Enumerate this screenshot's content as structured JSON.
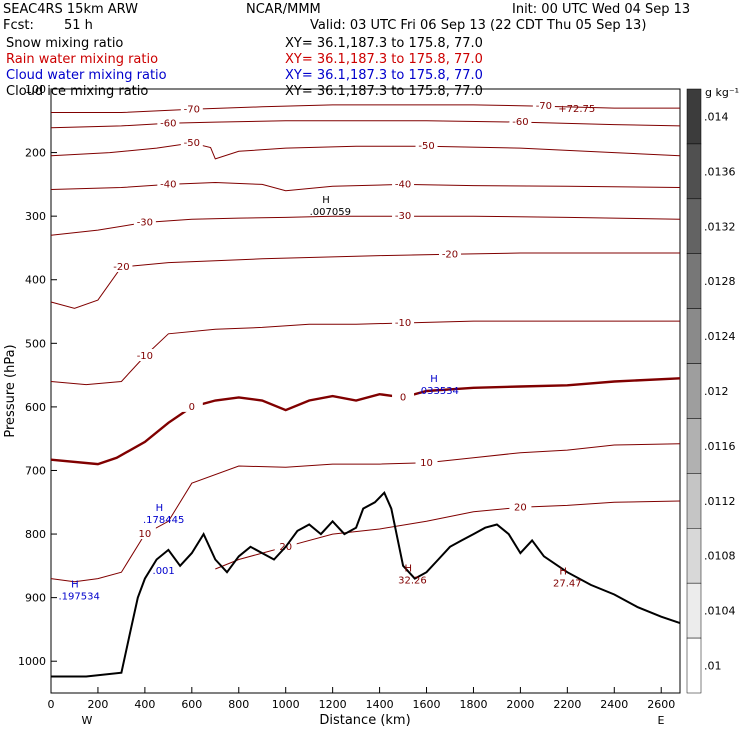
{
  "header": {
    "model": "SEAC4RS 15km ARW",
    "center": "NCAR/MMM",
    "init": "Init: 00 UTC Wed 04 Sep 13",
    "fcst_label": "Fcst:",
    "fcst_value": "51 h",
    "valid": "Valid: 03 UTC Fri 06 Sep 13 (22 CDT Thu 05 Sep 13)"
  },
  "legend": [
    {
      "label": "Snow mixing ratio",
      "xy": "XY=  36.1,187.3 to 175.8, 77.0",
      "color": "#000000"
    },
    {
      "label": "Rain water mixing ratio",
      "xy": "XY=  36.1,187.3 to 175.8, 77.0",
      "color": "#cc0000"
    },
    {
      "label": "Cloud water mixing ratio",
      "xy": "XY=  36.1,187.3 to 175.8, 77.0",
      "color": "#0000cc"
    },
    {
      "label": "Cloud ice mixing ratio",
      "xy": "XY=  36.1,187.3 to 175.8, 77.0",
      "color": "#000000"
    }
  ],
  "colorbar": {
    "unit": "g kg⁻¹",
    "ticks": [
      ".014",
      ".0136",
      ".0132",
      ".0128",
      ".0124",
      ".012",
      ".0116",
      ".0112",
      ".0108",
      ".0104",
      ".01"
    ]
  },
  "chart_data": {
    "type": "contour",
    "xlabel": "Distance (km)",
    "ylabel": "Pressure (hPa)",
    "xlim": [
      0,
      2680
    ],
    "ylim": [
      1050,
      100
    ],
    "x_ticks": [
      0,
      200,
      400,
      600,
      800,
      1000,
      1200,
      1400,
      1600,
      1800,
      2000,
      2200,
      2400,
      2600
    ],
    "y_ticks": [
      100,
      200,
      300,
      400,
      500,
      600,
      700,
      800,
      900,
      1000
    ],
    "x_end_labels": [
      "W",
      "E"
    ],
    "temperature_isotherms": [
      {
        "level": "-70",
        "points": [
          [
            0,
            137
          ],
          [
            300,
            137
          ],
          [
            600,
            132
          ],
          [
            900,
            128
          ],
          [
            1200,
            125
          ],
          [
            1500,
            125
          ],
          [
            1800,
            125
          ],
          [
            2100,
            127
          ],
          [
            2400,
            130
          ],
          [
            2680,
            130
          ]
        ]
      },
      {
        "level": "-60",
        "points": [
          [
            0,
            161
          ],
          [
            300,
            158
          ],
          [
            500,
            154
          ],
          [
            700,
            152
          ],
          [
            1000,
            150
          ],
          [
            1300,
            150
          ],
          [
            1600,
            150
          ],
          [
            2000,
            152
          ],
          [
            2400,
            156
          ],
          [
            2680,
            158
          ]
        ]
      },
      {
        "level": "-50",
        "points": [
          [
            0,
            205
          ],
          [
            250,
            200
          ],
          [
            450,
            193
          ],
          [
            600,
            185
          ],
          [
            680,
            192
          ],
          [
            700,
            210
          ],
          [
            800,
            198
          ],
          [
            1000,
            193
          ],
          [
            1300,
            190
          ],
          [
            1600,
            190
          ],
          [
            2000,
            193
          ],
          [
            2400,
            200
          ],
          [
            2680,
            205
          ]
        ]
      },
      {
        "level": "-40",
        "points": [
          [
            0,
            258
          ],
          [
            300,
            255
          ],
          [
            500,
            250
          ],
          [
            700,
            247
          ],
          [
            900,
            250
          ],
          [
            1000,
            260
          ],
          [
            1200,
            253
          ],
          [
            1500,
            250
          ],
          [
            1800,
            252
          ],
          [
            2200,
            253
          ],
          [
            2680,
            255
          ]
        ]
      },
      {
        "level": "-30",
        "points": [
          [
            0,
            330
          ],
          [
            200,
            322
          ],
          [
            400,
            310
          ],
          [
            600,
            305
          ],
          [
            800,
            303
          ],
          [
            1000,
            302
          ],
          [
            1200,
            300
          ],
          [
            1500,
            300
          ],
          [
            1800,
            300
          ],
          [
            2200,
            302
          ],
          [
            2680,
            305
          ]
        ]
      },
      {
        "level": "-20",
        "points": [
          [
            0,
            435
          ],
          [
            100,
            445
          ],
          [
            200,
            432
          ],
          [
            300,
            380
          ],
          [
            500,
            373
          ],
          [
            700,
            370
          ],
          [
            900,
            367
          ],
          [
            1100,
            365
          ],
          [
            1400,
            362
          ],
          [
            1700,
            360
          ],
          [
            2000,
            358
          ],
          [
            2400,
            358
          ],
          [
            2680,
            358
          ]
        ]
      },
      {
        "level": "-10",
        "points": [
          [
            0,
            560
          ],
          [
            150,
            565
          ],
          [
            300,
            560
          ],
          [
            400,
            520
          ],
          [
            500,
            485
          ],
          [
            700,
            478
          ],
          [
            900,
            475
          ],
          [
            1100,
            470
          ],
          [
            1300,
            470
          ],
          [
            1500,
            468
          ],
          [
            1800,
            465
          ],
          [
            2200,
            465
          ],
          [
            2680,
            465
          ]
        ]
      },
      {
        "level": "0",
        "points": [
          [
            0,
            683
          ],
          [
            200,
            690
          ],
          [
            280,
            680
          ],
          [
            400,
            655
          ],
          [
            500,
            625
          ],
          [
            600,
            600
          ],
          [
            700,
            590
          ],
          [
            800,
            585
          ],
          [
            900,
            590
          ],
          [
            1000,
            605
          ],
          [
            1100,
            590
          ],
          [
            1200,
            583
          ],
          [
            1300,
            590
          ],
          [
            1400,
            580
          ],
          [
            1500,
            585
          ],
          [
            1600,
            575
          ],
          [
            1800,
            570
          ],
          [
            2000,
            568
          ],
          [
            2200,
            566
          ],
          [
            2400,
            560
          ],
          [
            2680,
            555
          ]
        ]
      },
      {
        "level": "10",
        "points": [
          [
            0,
            870
          ],
          [
            100,
            875
          ],
          [
            200,
            870
          ],
          [
            300,
            860
          ],
          [
            400,
            800
          ],
          [
            500,
            780
          ],
          [
            600,
            720
          ],
          [
            800,
            693
          ],
          [
            1000,
            695
          ],
          [
            1200,
            690
          ],
          [
            1400,
            690
          ],
          [
            1600,
            688
          ],
          [
            1800,
            680
          ],
          [
            2000,
            672
          ],
          [
            2200,
            668
          ],
          [
            2400,
            660
          ],
          [
            2680,
            658
          ]
        ]
      },
      {
        "level": "20",
        "points": [
          [
            700,
            855
          ],
          [
            800,
            840
          ],
          [
            900,
            830
          ],
          [
            1000,
            820
          ],
          [
            1200,
            800
          ],
          [
            1400,
            792
          ],
          [
            1600,
            780
          ],
          [
            1800,
            765
          ],
          [
            2000,
            758
          ],
          [
            2200,
            755
          ],
          [
            2400,
            750
          ],
          [
            2680,
            748
          ]
        ]
      }
    ],
    "freezing_level_bold": "0",
    "terrain_surface_hpa": [
      [
        0,
        1024
      ],
      [
        150,
        1024
      ],
      [
        300,
        1018
      ],
      [
        340,
        950
      ],
      [
        370,
        900
      ],
      [
        400,
        870
      ],
      [
        450,
        840
      ],
      [
        500,
        825
      ],
      [
        550,
        850
      ],
      [
        600,
        830
      ],
      [
        650,
        800
      ],
      [
        700,
        840
      ],
      [
        750,
        860
      ],
      [
        800,
        835
      ],
      [
        850,
        820
      ],
      [
        900,
        830
      ],
      [
        950,
        840
      ],
      [
        1000,
        820
      ],
      [
        1050,
        795
      ],
      [
        1100,
        785
      ],
      [
        1150,
        800
      ],
      [
        1200,
        780
      ],
      [
        1250,
        800
      ],
      [
        1300,
        790
      ],
      [
        1330,
        760
      ],
      [
        1380,
        750
      ],
      [
        1420,
        735
      ],
      [
        1450,
        760
      ],
      [
        1500,
        850
      ],
      [
        1550,
        870
      ],
      [
        1600,
        860
      ],
      [
        1650,
        840
      ],
      [
        1700,
        820
      ],
      [
        1750,
        810
      ],
      [
        1800,
        800
      ],
      [
        1850,
        790
      ],
      [
        1900,
        785
      ],
      [
        1950,
        800
      ],
      [
        2000,
        830
      ],
      [
        2050,
        810
      ],
      [
        2100,
        835
      ],
      [
        2200,
        860
      ],
      [
        2300,
        880
      ],
      [
        2400,
        895
      ],
      [
        2500,
        915
      ],
      [
        2600,
        930
      ],
      [
        2680,
        940
      ]
    ],
    "extrema_labels": [
      {
        "kind": "H",
        "value": ".007059",
        "x": 1190,
        "p": 290,
        "color": "#000000"
      },
      {
        "kind": "H",
        "value": ".033534",
        "x": 1650,
        "p": 572,
        "color": "#0000cc"
      },
      {
        "kind": "H",
        "value": ".178445",
        "x": 480,
        "p": 775,
        "color": "#0000cc"
      },
      {
        "kind": "H",
        "value": ".197534",
        "x": 120,
        "p": 895,
        "color": "#0000cc"
      },
      {
        "kind": "H",
        "value": "32.26",
        "x": 1540,
        "p": 870,
        "color": "#800000"
      },
      {
        "kind": "H",
        "value": "27.47",
        "x": 2200,
        "p": 875,
        "color": "#800000"
      },
      {
        "kind": "",
        "value": ".001",
        "x": 480,
        "p": 855,
        "color": "#0000cc"
      },
      {
        "kind": "",
        "value": "+72.75",
        "x": 2240,
        "p": 128,
        "color": "#800000"
      }
    ]
  }
}
